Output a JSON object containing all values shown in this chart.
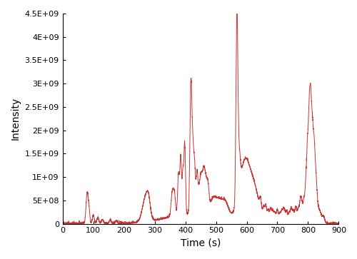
{
  "xlabel": "Time (s)",
  "ylabel": "Intensity",
  "xlim": [
    0,
    900
  ],
  "ylim": [
    0,
    4500000000.0
  ],
  "yticks": [
    0,
    500000000.0,
    1000000000.0,
    1500000000.0,
    2000000000.0,
    2500000000.0,
    3000000000.0,
    3500000000.0,
    4000000000.0,
    4500000000.0
  ],
  "ytick_labels": [
    "0",
    "5E+08",
    "1E+09",
    "1.5E+09",
    "2E+09",
    "2.5E+09",
    "3E+09",
    "3.5E+09",
    "4E+09",
    "4.5E+09"
  ],
  "xticks": [
    0,
    100,
    200,
    300,
    400,
    500,
    600,
    700,
    800,
    900
  ],
  "line_color": "#cc3333",
  "line_width": 0.7,
  "background_color": "#ffffff",
  "figsize": [
    5.0,
    3.63
  ],
  "dpi": 100
}
